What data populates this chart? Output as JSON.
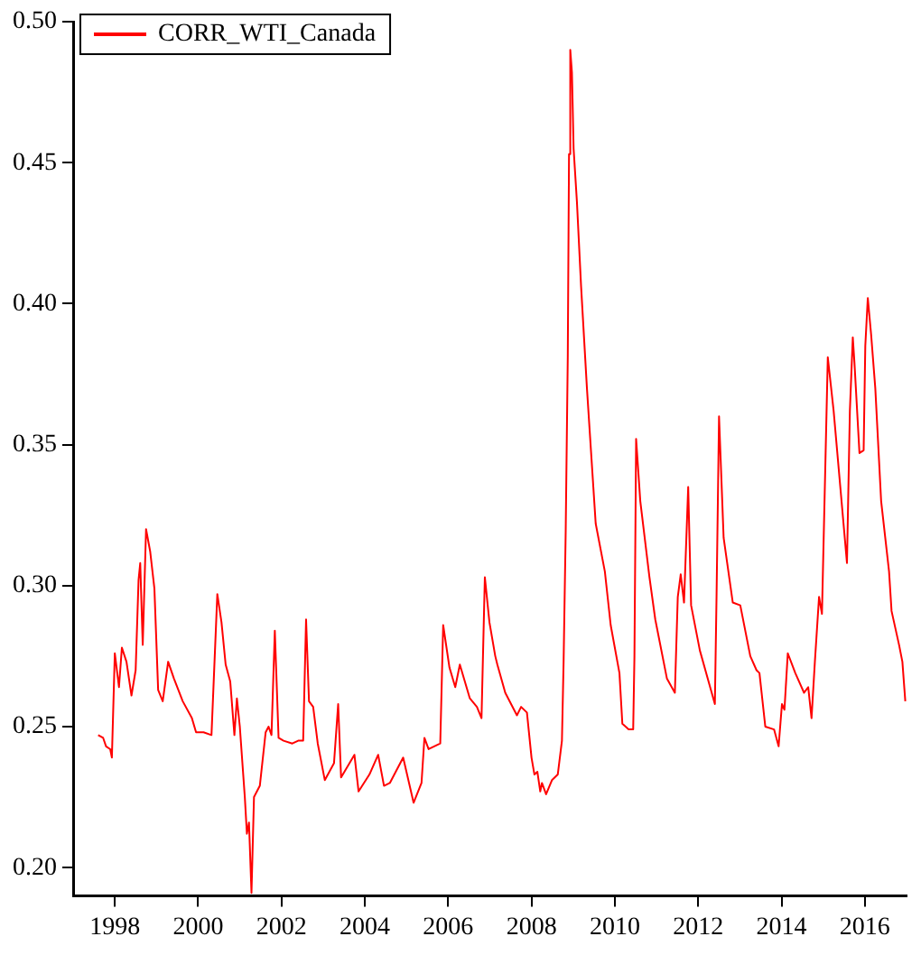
{
  "chart_data": {
    "type": "line",
    "legend": "top left",
    "grid": false,
    "marker": "none",
    "line_style": "solid",
    "xlim": [
      1997,
      2017
    ],
    "xticks": [
      1998,
      2000,
      2002,
      2004,
      2006,
      2008,
      2010,
      2012,
      2014,
      2016
    ],
    "ylim": [
      0.19,
      0.5
    ],
    "yticks": [
      {
        "value": 0.2,
        "label": "0.20"
      },
      {
        "value": 0.25,
        "label": "0.25"
      },
      {
        "value": 0.3,
        "label": "0.30"
      },
      {
        "value": 0.35,
        "label": "0.35"
      },
      {
        "value": 0.4,
        "label": "0.40"
      },
      {
        "value": 0.45,
        "label": "0.45"
      },
      {
        "value": 0.5,
        "label": "0.50"
      }
    ],
    "series": [
      {
        "name": "CORR_WTI_Canada",
        "color": "#ff0000",
        "x": [
          1997.6,
          1997.72,
          1997.79,
          1997.89,
          1997.93,
          1998.0,
          1998.1,
          1998.17,
          1998.28,
          1998.4,
          1998.5,
          1998.57,
          1998.61,
          1998.67,
          1998.75,
          1998.85,
          1998.95,
          1999.04,
          1999.15,
          1999.28,
          1999.42,
          1999.63,
          1999.85,
          1999.95,
          2000.13,
          2000.32,
          2000.46,
          2000.56,
          2000.66,
          2000.77,
          2000.87,
          2000.93,
          2001.0,
          2001.12,
          2001.17,
          2001.22,
          2001.28,
          2001.34,
          2001.48,
          2001.62,
          2001.69,
          2001.76,
          2001.84,
          2001.93,
          2002.05,
          2002.26,
          2002.4,
          2002.52,
          2002.59,
          2002.66,
          2002.76,
          2002.87,
          2003.04,
          2003.26,
          2003.36,
          2003.43,
          2003.75,
          2003.85,
          2004.11,
          2004.32,
          2004.46,
          2004.6,
          2004.92,
          2005.17,
          2005.36,
          2005.43,
          2005.53,
          2005.81,
          2005.88,
          2006.03,
          2006.17,
          2006.28,
          2006.52,
          2006.69,
          2006.8,
          2006.88,
          2006.99,
          2007.13,
          2007.18,
          2007.37,
          2007.65,
          2007.75,
          2007.89,
          2008.0,
          2008.07,
          2008.14,
          2008.21,
          2008.25,
          2008.35,
          2008.49,
          2008.63,
          2008.73,
          2008.77,
          2008.82,
          2008.87,
          2008.9,
          2008.93,
          2008.97,
          2009.01,
          2009.09,
          2009.19,
          2009.33,
          2009.54,
          2009.76,
          2009.9,
          2010.11,
          2010.18,
          2010.33,
          2010.44,
          2010.47,
          2010.51,
          2010.61,
          2010.83,
          2010.97,
          2011.25,
          2011.44,
          2011.51,
          2011.58,
          2011.66,
          2011.76,
          2011.83,
          2012.04,
          2012.4,
          2012.44,
          2012.5,
          2012.61,
          2012.83,
          2013.01,
          2013.25,
          2013.4,
          2013.47,
          2013.61,
          2013.82,
          2013.93,
          2014.01,
          2014.07,
          2014.15,
          2014.33,
          2014.54,
          2014.64,
          2014.72,
          2014.8,
          2014.9,
          2014.97,
          2015.11,
          2015.25,
          2015.57,
          2015.64,
          2015.71,
          2015.75,
          2015.87,
          2015.97,
          2016.01,
          2016.07,
          2016.15,
          2016.25,
          2016.39,
          2016.58,
          2016.64,
          2016.82,
          2016.9,
          2016.97
        ],
        "values": [
          0.247,
          0.246,
          0.243,
          0.242,
          0.239,
          0.276,
          0.264,
          0.278,
          0.273,
          0.261,
          0.27,
          0.302,
          0.308,
          0.279,
          0.32,
          0.312,
          0.299,
          0.263,
          0.259,
          0.273,
          0.267,
          0.259,
          0.253,
          0.248,
          0.248,
          0.247,
          0.297,
          0.287,
          0.272,
          0.266,
          0.247,
          0.26,
          0.25,
          0.225,
          0.212,
          0.216,
          0.191,
          0.225,
          0.229,
          0.248,
          0.25,
          0.247,
          0.284,
          0.246,
          0.245,
          0.244,
          0.245,
          0.245,
          0.288,
          0.259,
          0.257,
          0.244,
          0.231,
          0.237,
          0.258,
          0.232,
          0.24,
          0.227,
          0.233,
          0.24,
          0.229,
          0.23,
          0.239,
          0.223,
          0.23,
          0.246,
          0.242,
          0.244,
          0.286,
          0.271,
          0.264,
          0.272,
          0.26,
          0.257,
          0.253,
          0.303,
          0.287,
          0.275,
          0.272,
          0.262,
          0.254,
          0.257,
          0.255,
          0.239,
          0.233,
          0.234,
          0.227,
          0.23,
          0.226,
          0.231,
          0.233,
          0.245,
          0.273,
          0.319,
          0.381,
          0.453,
          0.49,
          0.482,
          0.455,
          0.436,
          0.406,
          0.37,
          0.322,
          0.305,
          0.286,
          0.269,
          0.251,
          0.249,
          0.249,
          0.275,
          0.352,
          0.33,
          0.303,
          0.288,
          0.267,
          0.262,
          0.296,
          0.304,
          0.294,
          0.335,
          0.293,
          0.277,
          0.258,
          0.296,
          0.36,
          0.317,
          0.294,
          0.293,
          0.275,
          0.27,
          0.269,
          0.25,
          0.249,
          0.243,
          0.258,
          0.256,
          0.276,
          0.269,
          0.262,
          0.264,
          0.253,
          0.273,
          0.296,
          0.29,
          0.381,
          0.362,
          0.308,
          0.362,
          0.388,
          0.379,
          0.347,
          0.348,
          0.385,
          0.402,
          0.389,
          0.37,
          0.33,
          0.305,
          0.291,
          0.279,
          0.273,
          0.259
        ]
      }
    ]
  }
}
